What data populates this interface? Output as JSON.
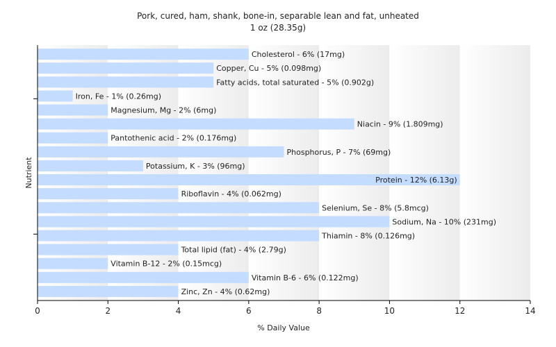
{
  "chart_data": {
    "type": "bar",
    "orientation": "horizontal",
    "title": "Pork, cured, ham, shank, bone-in, separable lean and fat, unheated",
    "subtitle": "1 oz (28.35g)",
    "xlabel": "% Daily Value",
    "ylabel": "Nutrient",
    "xlim": [
      0,
      14
    ],
    "xticks": [
      0,
      2,
      4,
      6,
      8,
      10,
      12,
      14
    ],
    "bar_color": "#c4dcff",
    "grid": "vertical background bands",
    "categories": [
      "Cholesterol",
      "Copper, Cu",
      "Fatty acids, total saturated",
      "Iron, Fe",
      "Magnesium, Mg",
      "Niacin",
      "Pantothenic acid",
      "Phosphorus, P",
      "Potassium, K",
      "Protein",
      "Riboflavin",
      "Selenium, Se",
      "Sodium, Na",
      "Thiamin",
      "Total lipid (fat)",
      "Vitamin B-12",
      "Vitamin B-6",
      "Zinc, Zn"
    ],
    "values": [
      6,
      5,
      5,
      1,
      2,
      9,
      2,
      7,
      3,
      12,
      4,
      8,
      10,
      8,
      4,
      2,
      6,
      4
    ],
    "labels": [
      "Cholesterol - 6% (17mg)",
      "Copper, Cu - 5% (0.098mg)",
      "Fatty acids, total saturated - 5% (0.902g)",
      "Iron, Fe - 1% (0.26mg)",
      "Magnesium, Mg - 2% (6mg)",
      "Niacin - 9% (1.809mg)",
      "Pantothenic acid - 2% (0.176mg)",
      "Phosphorus, P - 7% (69mg)",
      "Potassium, K - 3% (96mg)",
      "Protein - 12% (6.13g)",
      "Riboflavin - 4% (0.062mg)",
      "Selenium, Se - 8% (5.8mcg)",
      "Sodium, Na - 10% (231mg)",
      "Thiamin - 8% (0.126mg)",
      "Total lipid (fat) - 4% (2.79g)",
      "Vitamin B-12 - 2% (0.15mcg)",
      "Vitamin B-6 - 6% (0.122mg)",
      "Zinc, Zn - 4% (0.62mg)"
    ]
  }
}
